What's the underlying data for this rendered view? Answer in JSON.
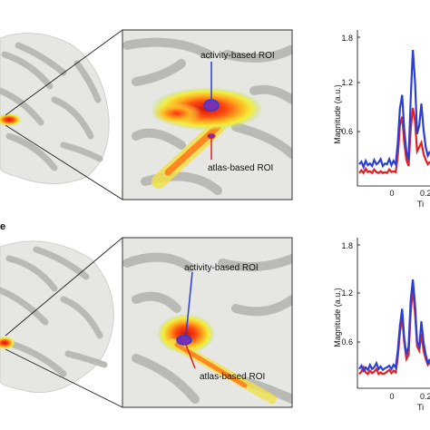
{
  "colors": {
    "blue": "#2b3fd6",
    "red": "#e02020",
    "cortex": "#e6e6e3",
    "sulcus": "#b9b9b5",
    "axis": "#000000"
  },
  "panels": {
    "top": {
      "callouts": {
        "activity": "activity-based ROI",
        "atlas": "atlas-based ROI"
      },
      "chart_axis": {
        "ylabel": "Magnitude (a.u.)",
        "yticks": [
          "1.8",
          "1.2",
          "0.6"
        ],
        "xticks": [
          "0",
          "0.2"
        ],
        "xlabel": "Ti"
      }
    },
    "bottom": {
      "panel_letter": "e",
      "callouts": {
        "activity": "activity-based ROI",
        "atlas": "atlas-based ROI"
      },
      "chart_axis": {
        "ylabel": "Magnitude (a.u.)",
        "yticks": [
          "1.8",
          "1.2",
          "0.6"
        ],
        "xticks": [
          "0",
          "0.2"
        ],
        "xlabel": "Ti"
      }
    }
  },
  "chart_data": [
    {
      "type": "line",
      "ylabel": "Magnitude (a.u.)",
      "ylim": [
        0.05,
        1.85
      ],
      "xlim": [
        -0.13,
        0.2
      ],
      "series": [
        {
          "color": "#2b3fd6",
          "x": [
            -0.13,
            -0.12,
            -0.11,
            -0.1,
            -0.09,
            -0.08,
            -0.07,
            -0.06,
            -0.05,
            -0.04,
            -0.03,
            -0.02,
            -0.01,
            0,
            0.01,
            0.02,
            0.03,
            0.04,
            0.05,
            0.06,
            0.07,
            0.08,
            0.09,
            0.1,
            0.11,
            0.12,
            0.13,
            0.14,
            0.15,
            0.16,
            0.17,
            0.18,
            0.19,
            0.2
          ],
          "y": [
            0.3,
            0.33,
            0.27,
            0.34,
            0.29,
            0.31,
            0.28,
            0.35,
            0.3,
            0.32,
            0.36,
            0.28,
            0.31,
            0.3,
            0.36,
            0.29,
            0.34,
            0.3,
            0.55,
            0.95,
            1.1,
            0.7,
            0.45,
            0.35,
            1.05,
            1.62,
            1.25,
            0.65,
            0.75,
            1.0,
            0.7,
            0.5,
            0.4,
            0.45
          ]
        },
        {
          "color": "#e02020",
          "x": [
            -0.13,
            -0.12,
            -0.11,
            -0.1,
            -0.09,
            -0.08,
            -0.07,
            -0.06,
            -0.05,
            -0.04,
            -0.03,
            -0.02,
            -0.01,
            0,
            0.01,
            0.02,
            0.03,
            0.04,
            0.05,
            0.06,
            0.07,
            0.08,
            0.09,
            0.1,
            0.11,
            0.12,
            0.13,
            0.14,
            0.15,
            0.16,
            0.17,
            0.18,
            0.19,
            0.2
          ],
          "y": [
            0.2,
            0.23,
            0.2,
            0.25,
            0.21,
            0.22,
            0.2,
            0.24,
            0.21,
            0.2,
            0.22,
            0.2,
            0.21,
            0.2,
            0.24,
            0.21,
            0.22,
            0.21,
            0.4,
            0.75,
            0.85,
            0.55,
            0.35,
            0.28,
            0.7,
            0.95,
            0.8,
            0.45,
            0.5,
            0.55,
            0.42,
            0.35,
            0.3,
            0.33
          ]
        }
      ]
    },
    {
      "type": "line",
      "ylabel": "Magnitude (a.u.)",
      "ylim": [
        0.05,
        1.85
      ],
      "xlim": [
        -0.13,
        0.2
      ],
      "series": [
        {
          "color": "#2b3fd6",
          "x": [
            -0.13,
            -0.12,
            -0.11,
            -0.1,
            -0.09,
            -0.08,
            -0.07,
            -0.06,
            -0.05,
            -0.04,
            -0.03,
            -0.02,
            -0.01,
            0,
            0.01,
            0.02,
            0.03,
            0.04,
            0.05,
            0.06,
            0.07,
            0.08,
            0.09,
            0.1,
            0.11,
            0.12,
            0.13,
            0.14,
            0.15,
            0.16,
            0.17,
            0.18,
            0.19,
            0.2
          ],
          "y": [
            0.28,
            0.32,
            0.26,
            0.3,
            0.27,
            0.33,
            0.28,
            0.3,
            0.35,
            0.28,
            0.31,
            0.27,
            0.29,
            0.3,
            0.32,
            0.28,
            0.33,
            0.3,
            0.5,
            0.8,
            1.0,
            0.65,
            0.45,
            0.55,
            1.1,
            1.35,
            1.05,
            0.6,
            0.55,
            0.85,
            0.6,
            0.45,
            0.35,
            0.4
          ]
        },
        {
          "color": "#e02020",
          "x": [
            -0.13,
            -0.12,
            -0.11,
            -0.1,
            -0.09,
            -0.08,
            -0.07,
            -0.06,
            -0.05,
            -0.04,
            -0.03,
            -0.02,
            -0.01,
            0,
            0.01,
            0.02,
            0.03,
            0.04,
            0.05,
            0.06,
            0.07,
            0.08,
            0.09,
            0.1,
            0.11,
            0.12,
            0.13,
            0.14,
            0.15,
            0.16,
            0.17,
            0.18,
            0.19,
            0.2
          ],
          "y": [
            0.22,
            0.25,
            0.3,
            0.24,
            0.22,
            0.26,
            0.23,
            0.25,
            0.28,
            0.22,
            0.24,
            0.22,
            0.23,
            0.25,
            0.27,
            0.23,
            0.26,
            0.24,
            0.42,
            0.72,
            0.9,
            0.6,
            0.4,
            0.45,
            0.95,
            1.25,
            0.95,
            0.55,
            0.5,
            0.7,
            0.5,
            0.4,
            0.33,
            0.36
          ]
        }
      ]
    }
  ]
}
